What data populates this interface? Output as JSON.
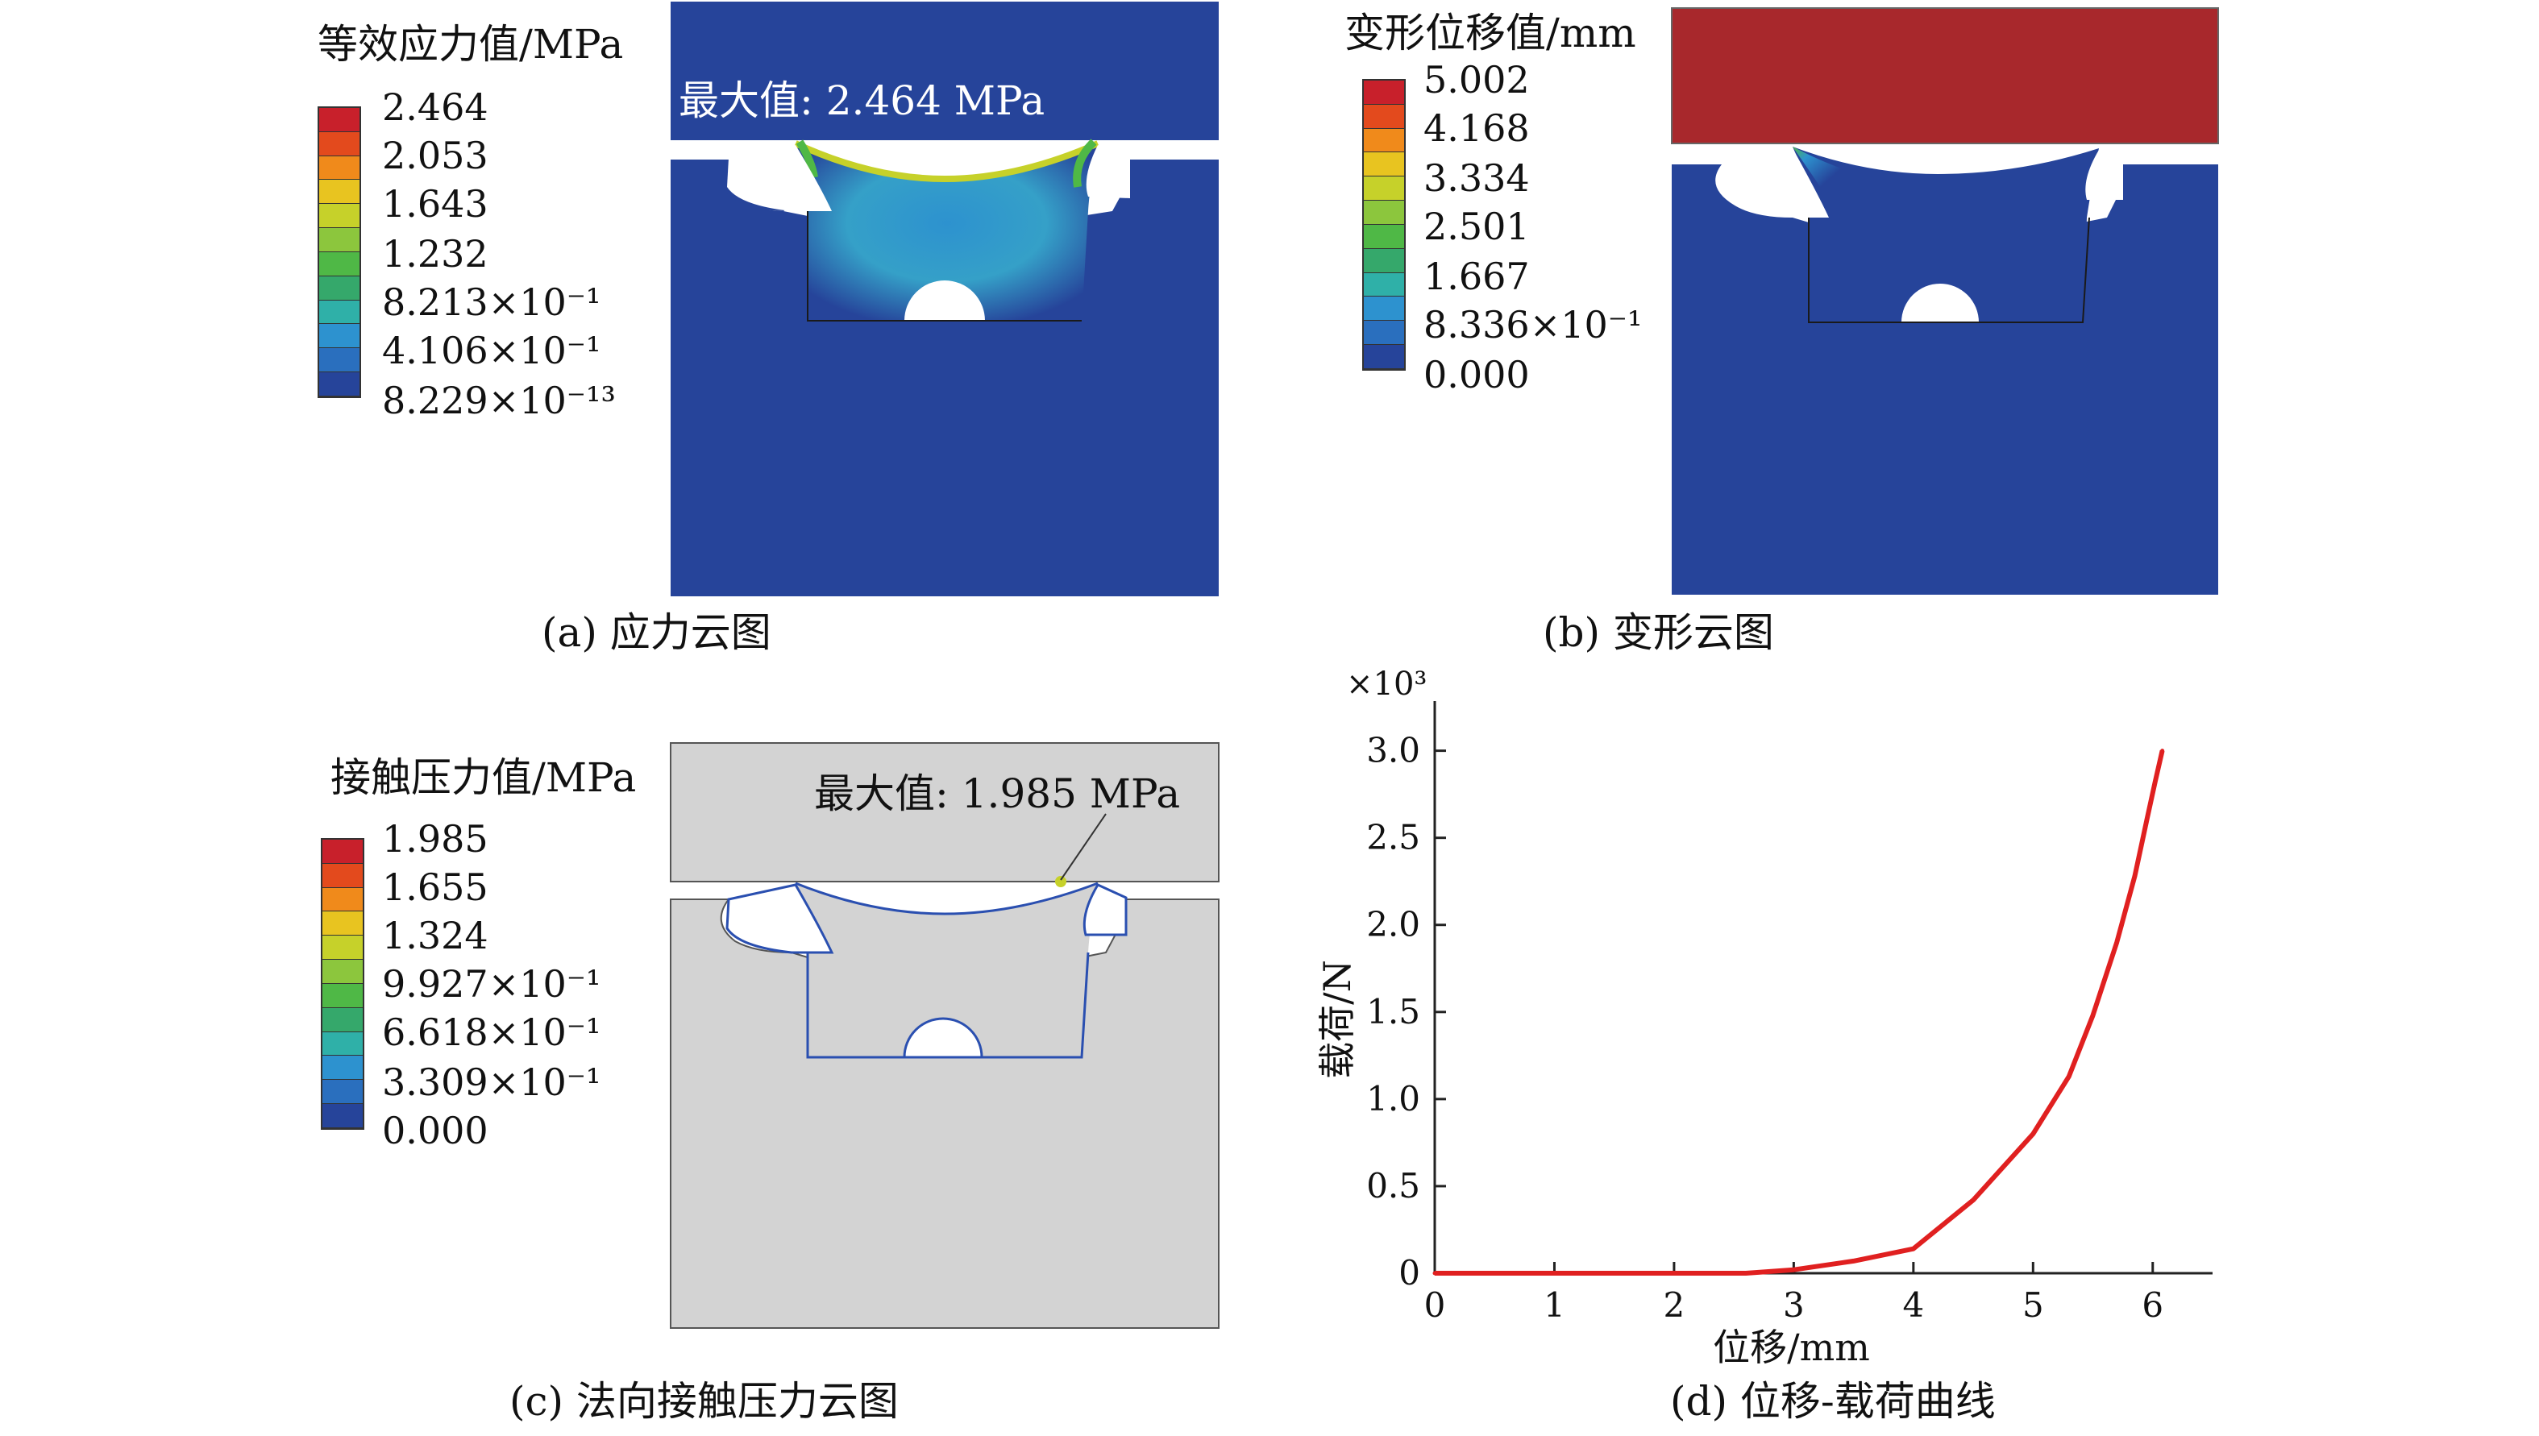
{
  "colorbar_colors": [
    "#c8202b",
    "#e34a1d",
    "#f08a1b",
    "#e8c420",
    "#c6d12a",
    "#8cc63d",
    "#4fb846",
    "#35a86b",
    "#2fb0a8",
    "#2d92cf",
    "#2a6fbe",
    "#26449a"
  ],
  "panels": {
    "a": {
      "legend_title": "等效应力值/MPa",
      "legend_values": [
        "2.464",
        "2.053",
        "1.643",
        "1.232",
        "8.213×10⁻¹",
        "4.106×10⁻¹",
        "8.229×10⁻¹³"
      ],
      "max_label": "最大值: 2.464 MPa",
      "caption": "(a) 应力云图"
    },
    "b": {
      "legend_title": "变形位移值/mm",
      "legend_values": [
        "5.002",
        "4.168",
        "3.334",
        "2.501",
        "1.667",
        "8.336×10⁻¹",
        "0.000"
      ],
      "caption": "(b) 变形云图"
    },
    "c": {
      "legend_title": "接触压力值/MPa",
      "legend_values": [
        "1.985",
        "1.655",
        "1.324",
        "9.927×10⁻¹",
        "6.618×10⁻¹",
        "3.309×10⁻¹",
        "0.000"
      ],
      "max_label": "最大值: 1.985 MPa",
      "caption": "(c) 法向接触压力云图"
    },
    "d": {
      "caption": "(d) 位移-载荷曲线"
    }
  },
  "chart_data": {
    "type": "line",
    "xlabel": "位移/mm",
    "ylabel": "载荷/N",
    "y_multiplier": "×10³",
    "xlim": [
      0,
      6.5
    ],
    "ylim": [
      0,
      3.1
    ],
    "x_ticks": [
      "0",
      "1",
      "2",
      "3",
      "4",
      "5",
      "6"
    ],
    "y_ticks": [
      "0",
      "0.5",
      "1.0",
      "1.5",
      "2.0",
      "2.5",
      "3.0"
    ],
    "series": [
      {
        "color": "#e02020",
        "x": [
          0,
          0.5,
          1,
          2,
          2.6,
          3,
          3.5,
          4,
          4.5,
          5,
          5.3,
          5.5,
          5.7,
          5.85,
          5.95,
          6.02,
          6.08
        ],
        "y": [
          0,
          0,
          0,
          0,
          0,
          0.02,
          0.07,
          0.14,
          0.42,
          0.8,
          1.13,
          1.48,
          1.9,
          2.28,
          2.6,
          2.82,
          3.0
        ]
      }
    ]
  }
}
